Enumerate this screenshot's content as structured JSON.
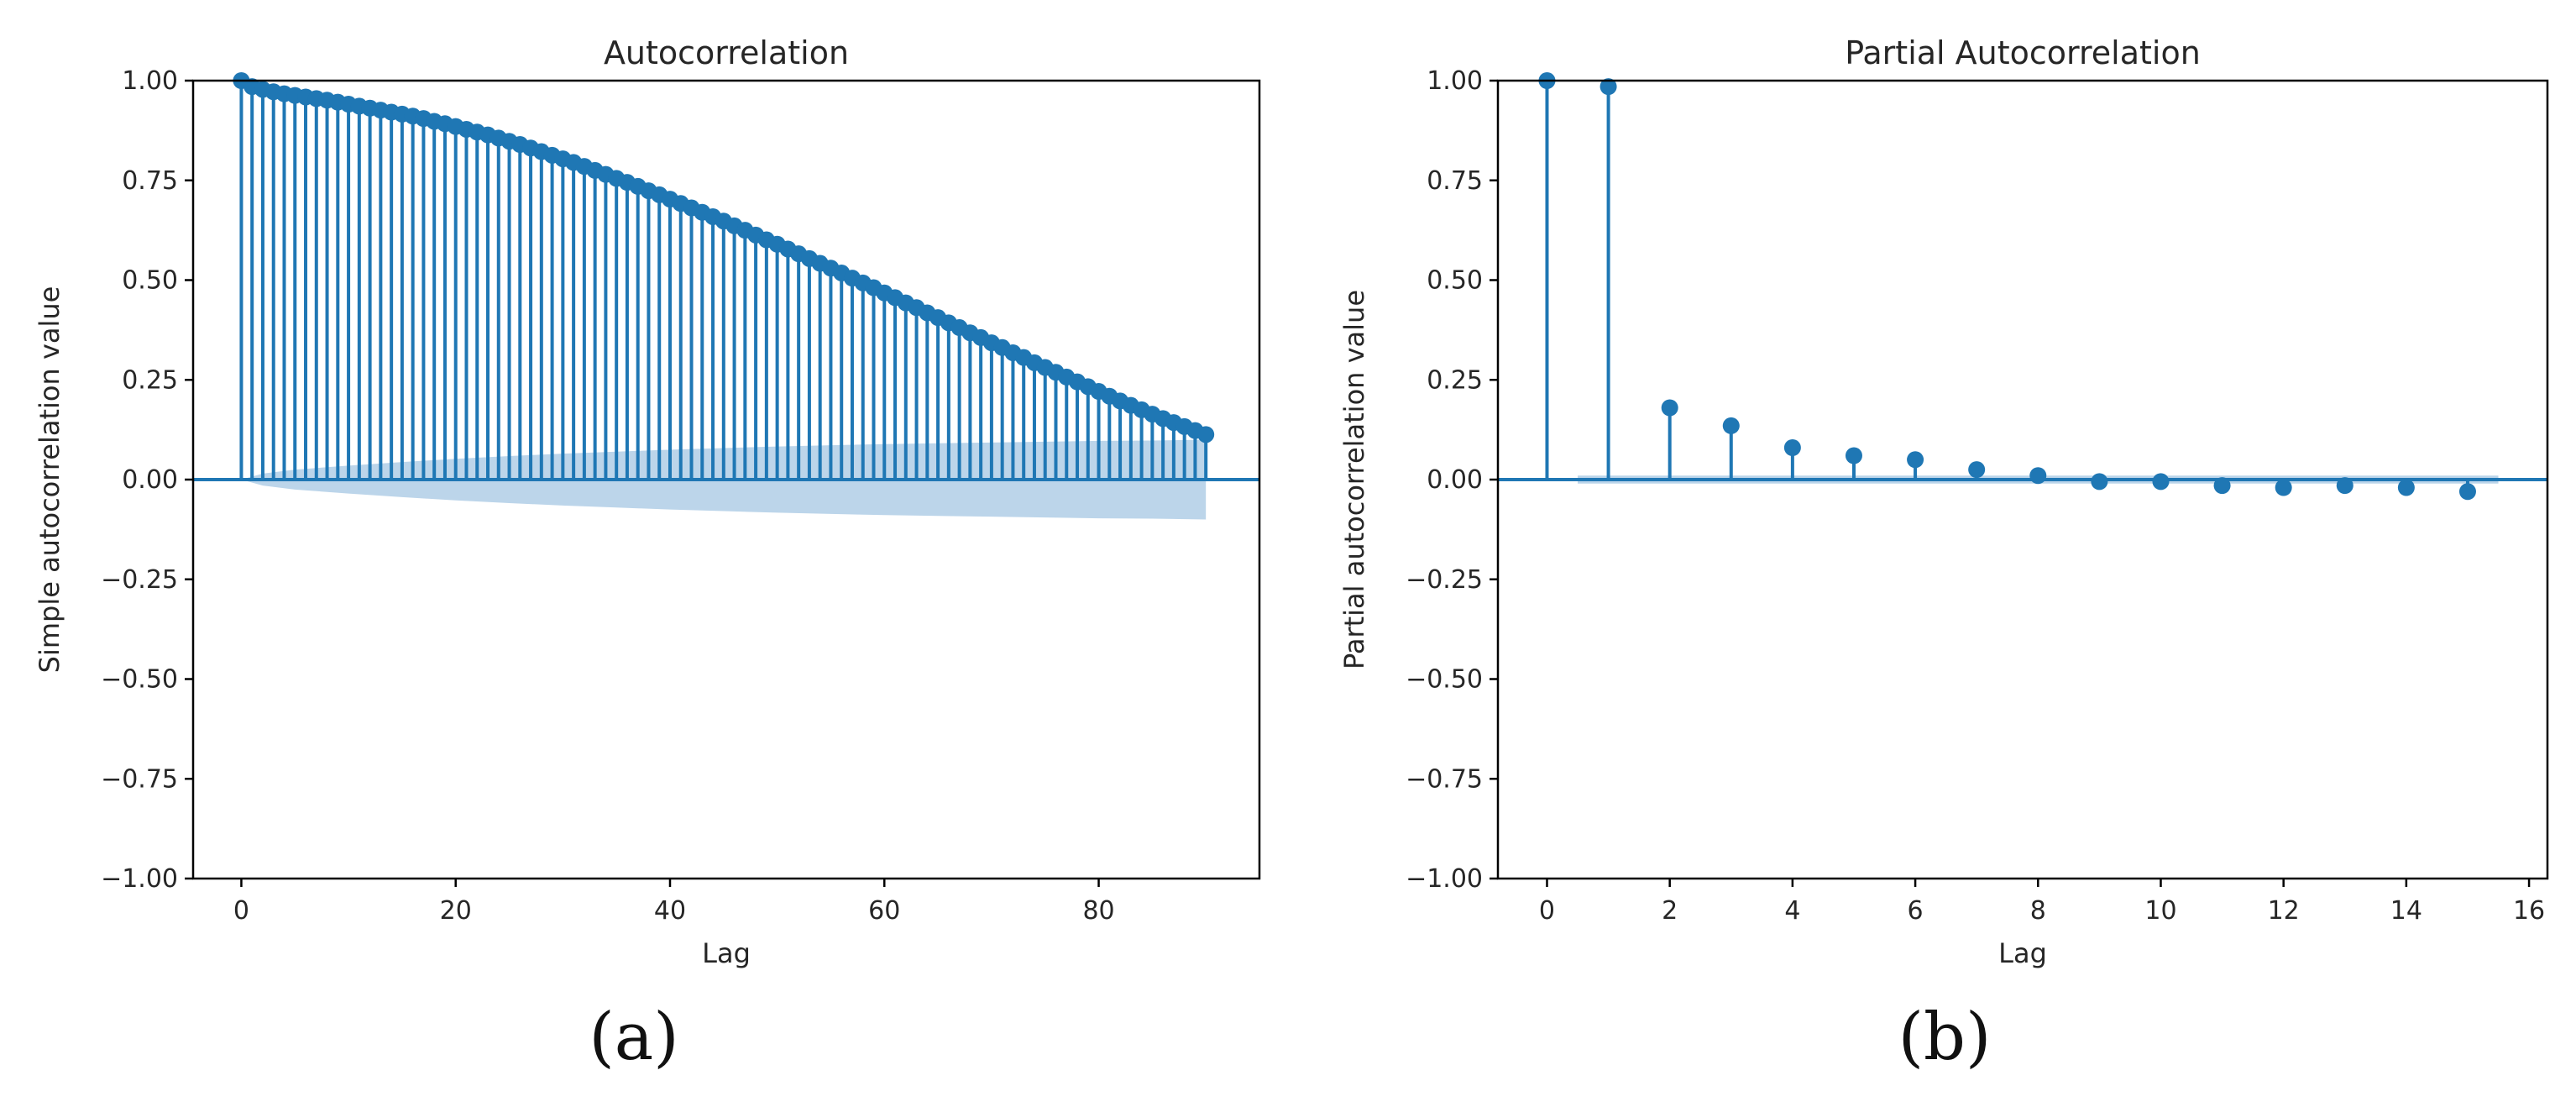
{
  "colors": {
    "stem": "#1f77b4",
    "band": "#bcd5ea",
    "axis": "#000000"
  },
  "panel_labels": [
    "(a)",
    "(b)"
  ],
  "chart_data": [
    {
      "type": "stem",
      "title": "Autocorrelation",
      "xlabel": "Lag",
      "ylabel": "Simple autocorrelation value",
      "xlim": [
        -4.5,
        95
      ],
      "ylim": [
        -1.0,
        1.0
      ],
      "xticks": [
        0,
        20,
        40,
        60,
        80
      ],
      "xtick_labels": [
        "0",
        "20",
        "40",
        "60",
        "80"
      ],
      "yticks": [
        1.0,
        0.75,
        0.5,
        0.25,
        0.0,
        -0.25,
        -0.5,
        -0.75,
        -1.0
      ],
      "ytick_labels": [
        "1.00",
        "0.75",
        "0.50",
        "0.25",
        "0.00",
        "−0.25",
        "−0.50",
        "−0.75",
        "−1.00"
      ],
      "lag_start": 0,
      "values": [
        1.0,
        0.985,
        0.978,
        0.972,
        0.967,
        0.963,
        0.959,
        0.955,
        0.951,
        0.946,
        0.941,
        0.936,
        0.931,
        0.926,
        0.921,
        0.916,
        0.911,
        0.905,
        0.898,
        0.892,
        0.885,
        0.878,
        0.871,
        0.864,
        0.856,
        0.848,
        0.84,
        0.831,
        0.822,
        0.813,
        0.804,
        0.795,
        0.785,
        0.775,
        0.765,
        0.755,
        0.745,
        0.735,
        0.724,
        0.714,
        0.703,
        0.692,
        0.681,
        0.67,
        0.659,
        0.648,
        0.636,
        0.625,
        0.613,
        0.601,
        0.59,
        0.578,
        0.566,
        0.554,
        0.542,
        0.53,
        0.518,
        0.505,
        0.493,
        0.481,
        0.468,
        0.456,
        0.443,
        0.431,
        0.418,
        0.406,
        0.393,
        0.381,
        0.368,
        0.356,
        0.343,
        0.331,
        0.318,
        0.306,
        0.293,
        0.281,
        0.269,
        0.257,
        0.245,
        0.233,
        0.221,
        0.209,
        0.197,
        0.186,
        0.175,
        0.164,
        0.153,
        0.143,
        0.133,
        0.123,
        0.113
      ],
      "confidence_band": {
        "lags": [
          0,
          2,
          5,
          10,
          15,
          20,
          25,
          30,
          35,
          40,
          45,
          50,
          55,
          60,
          65,
          70,
          75,
          80,
          85,
          90
        ],
        "half_width": [
          0.0,
          0.015,
          0.025,
          0.035,
          0.044,
          0.052,
          0.059,
          0.065,
          0.07,
          0.075,
          0.079,
          0.083,
          0.086,
          0.089,
          0.091,
          0.093,
          0.095,
          0.097,
          0.098,
          0.1
        ]
      }
    },
    {
      "type": "stem",
      "title": "Partial Autocorrelation",
      "xlabel": "Lag",
      "ylabel": "Partial autocorrelation value",
      "xlim": [
        -0.8,
        16.3
      ],
      "ylim": [
        -1.0,
        1.0
      ],
      "xticks": [
        0,
        2,
        4,
        6,
        8,
        10,
        12,
        14,
        16
      ],
      "xtick_labels": [
        "0",
        "2",
        "4",
        "6",
        "8",
        "10",
        "12",
        "14",
        "16"
      ],
      "yticks": [
        1.0,
        0.75,
        0.5,
        0.25,
        0.0,
        -0.25,
        -0.5,
        -0.75,
        -1.0
      ],
      "ytick_labels": [
        "1.00",
        "0.75",
        "0.50",
        "0.25",
        "0.00",
        "−0.25",
        "−0.50",
        "−0.75",
        "−1.00"
      ],
      "lag_start": 0,
      "values": [
        1.0,
        0.985,
        0.18,
        0.135,
        0.08,
        0.06,
        0.05,
        0.025,
        0.01,
        -0.005,
        -0.005,
        -0.015,
        -0.02,
        -0.015,
        -0.02,
        -0.03
      ],
      "confidence_band": {
        "lags": [
          0.5,
          15.5
        ],
        "half_width": [
          0.01,
          0.01
        ]
      }
    }
  ]
}
